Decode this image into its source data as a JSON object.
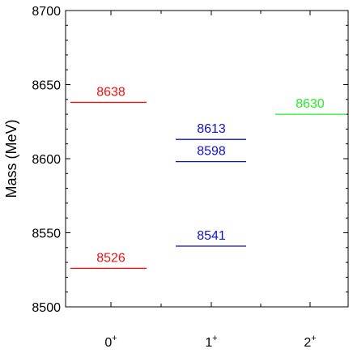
{
  "chart_data": {
    "type": "bar",
    "categories": [
      "0",
      "1",
      "2"
    ],
    "category_superscripts": [
      "+",
      "+",
      "+"
    ],
    "ylabel": "Mass (MeV)",
    "ylim": [
      8500,
      8700
    ],
    "yticks": [
      8500,
      8550,
      8600,
      8650,
      8700
    ],
    "grid": false,
    "levels": [
      {
        "category": "0",
        "value": 8638,
        "label": "8638",
        "color": "#ee1111"
      },
      {
        "category": "0",
        "value": 8526,
        "label": "8526",
        "color": "#ee1111"
      },
      {
        "category": "1",
        "value": 8613,
        "label": "8613",
        "color": "#1111cc"
      },
      {
        "category": "1",
        "value": 8598,
        "label": "8598",
        "color": "#1111cc"
      },
      {
        "category": "1",
        "value": 8541,
        "label": "8541",
        "color": "#1111cc"
      },
      {
        "category": "2",
        "value": 8630,
        "label": "8630",
        "color": "#22ee22"
      }
    ]
  }
}
